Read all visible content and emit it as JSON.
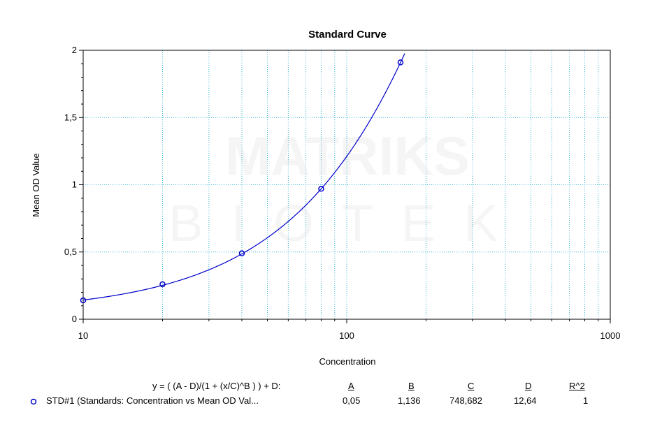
{
  "chart_data": {
    "type": "scatter",
    "title": "Standard Curve",
    "xlabel": "Concentration",
    "ylabel": "Mean OD Value",
    "xscale": "log",
    "xlim": [
      10,
      1000
    ],
    "ylim": [
      0,
      2
    ],
    "grid": true,
    "x_tick_labels": [
      "10",
      "100",
      "1000"
    ],
    "y_tick_labels": [
      "0",
      "0,5",
      "1",
      "1,5",
      "2"
    ],
    "series": [
      {
        "name": "STD#1 (Standards: Concentration vs Mean OD Val...",
        "points": [
          {
            "x": 10,
            "y": 0.14
          },
          {
            "x": 20,
            "y": 0.26
          },
          {
            "x": 40,
            "y": 0.49
          },
          {
            "x": 80,
            "y": 0.97
          },
          {
            "x": 160,
            "y": 1.91
          }
        ],
        "fit": {
          "model": "4PL",
          "A": 0.05,
          "B": 1.136,
          "C": 748.682,
          "D": 12.64
        },
        "color": "#0000cc"
      }
    ],
    "watermark": [
      "MATRIKS",
      "BIOTEK"
    ]
  },
  "fit_table": {
    "equation": "y = ( (A - D)/(1 + (x/C)^B ) ) + D:",
    "headers": [
      "A",
      "B",
      "C",
      "D",
      "R^2"
    ],
    "row": {
      "label": "STD#1 (Standards: Concentration vs Mean OD Val...",
      "values": [
        "0,05",
        "1,136",
        "748,682",
        "12,64",
        "1"
      ]
    }
  }
}
